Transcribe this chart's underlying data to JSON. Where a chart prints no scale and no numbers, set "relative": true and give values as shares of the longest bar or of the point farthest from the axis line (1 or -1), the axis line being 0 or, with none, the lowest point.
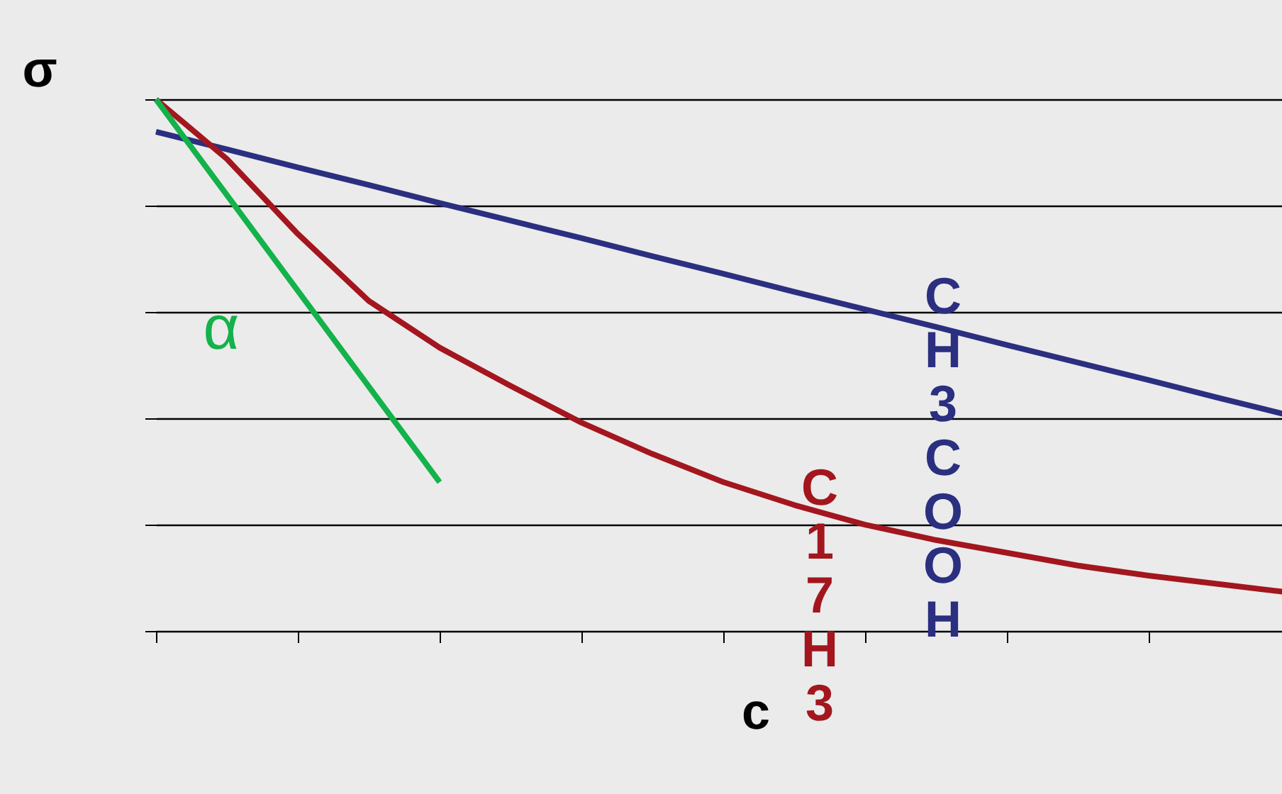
{
  "chart_data": {
    "type": "line",
    "relative": true,
    "xlabel": "c",
    "ylabel": "σ",
    "categories": [
      null,
      null,
      null,
      null,
      null,
      null,
      null,
      null,
      null,
      null,
      null,
      null,
      null,
      null,
      null,
      null,
      null
    ],
    "series": [
      {
        "name": "CH3COOH",
        "color": "#2b2f80",
        "values": [
          0.939,
          0.906,
          0.872,
          0.839,
          0.805,
          0.772,
          0.739,
          0.705,
          0.672,
          0.638,
          0.605,
          0.572,
          0.538,
          0.505,
          0.472,
          0.438,
          0.405
        ]
      },
      {
        "name": "C17H3",
        "color": "#a3161e",
        "values": [
          1.0,
          0.888,
          0.747,
          0.621,
          0.533,
          0.461,
          0.392,
          0.333,
          0.28,
          0.237,
          0.2,
          0.171,
          0.147,
          0.123,
          0.104,
          0.088,
          0.072
        ]
      },
      {
        "color": "#13b24a",
        "values": [
          1.0,
          0.82,
          0.64,
          0.46,
          0.28,
          null,
          null,
          null,
          null,
          null,
          null,
          null,
          null,
          null,
          null,
          null,
          null
        ]
      }
    ],
    "annotations": [
      "α"
    ],
    "grid": "y",
    "tick_labels": false,
    "marker": "none",
    "line_style": "solid"
  }
}
